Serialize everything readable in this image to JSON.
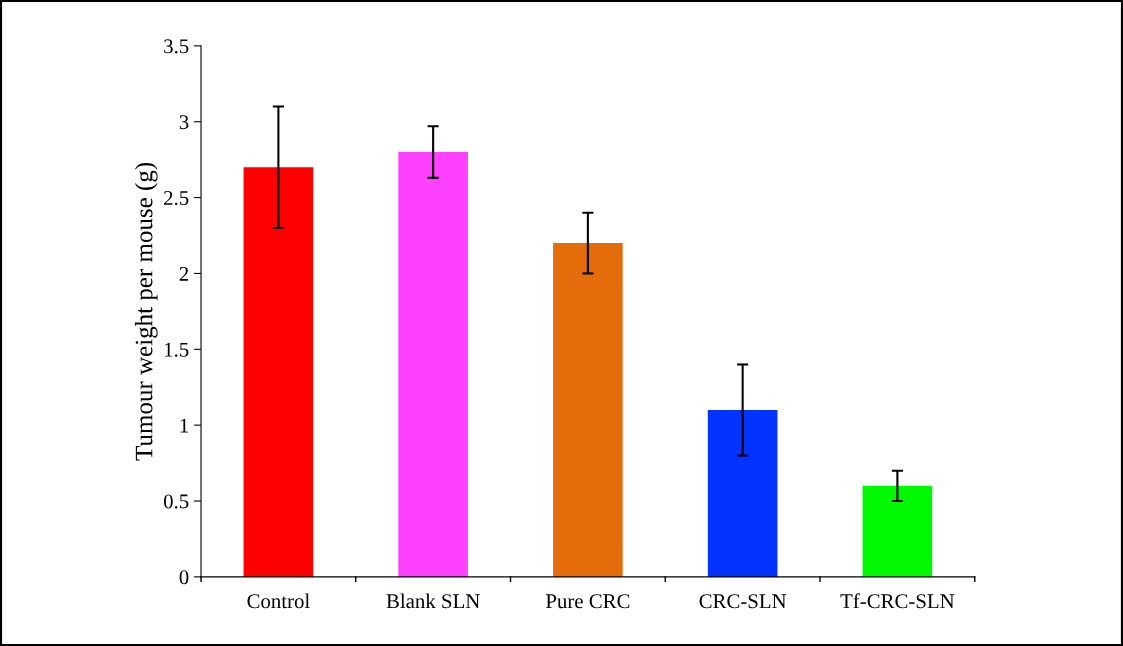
{
  "chart_data": {
    "type": "bar",
    "ylabel": "Tumour weight per mouse (g)",
    "categories": [
      "Control",
      "Blank SLN",
      "Pure CRC",
      "CRC-SLN",
      "Tf-CRC-SLN"
    ],
    "values": [
      2.7,
      2.8,
      2.2,
      1.1,
      0.6
    ],
    "errors": [
      0.4,
      0.17,
      0.2,
      0.3,
      0.1
    ],
    "colors": [
      "#ff0000",
      "#ff40ff",
      "#e46c0a",
      "#0433ff",
      "#00f900"
    ],
    "ylim": [
      0,
      3.5
    ],
    "yticks": [
      0,
      0.5,
      1,
      1.5,
      2,
      2.5,
      3,
      3.5
    ],
    "grid": false,
    "legend": false
  }
}
